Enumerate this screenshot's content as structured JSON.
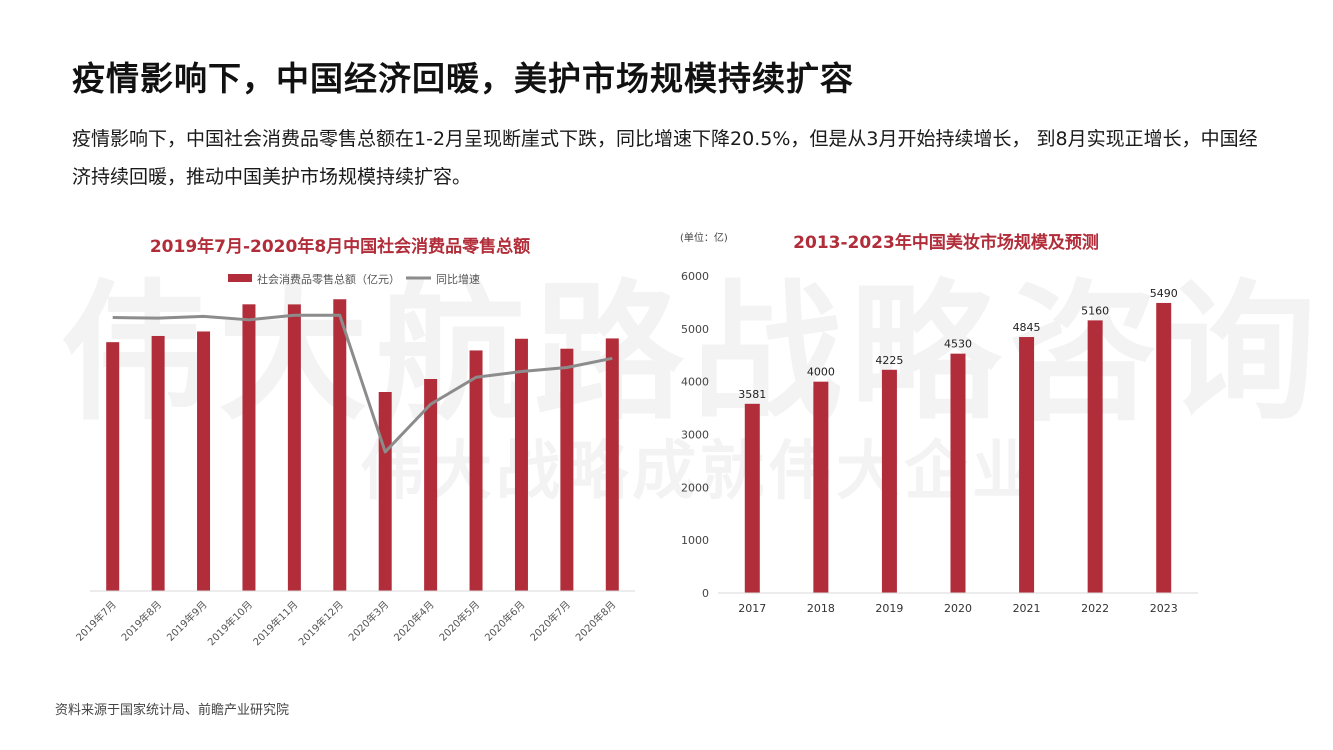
{
  "page": {
    "title": "疫情影响下，中国经济回暖，美护市场规模持续扩容",
    "description": "疫情影响下，中国社会消费品零售总额在1-2月呈现断崖式下跌，同比增速下降20.5%，但是从3月开始持续增长， 到8月实现正增长，中国经济持续回暖，推动中国美护市场规模持续扩容。",
    "source": "资料来源于国家统计局、前瞻产业研究院",
    "watermark_main": "伟大航路战略咨询",
    "watermark_sub": "伟大战略成就伟大企业"
  },
  "colors": {
    "bar": "#b22d3a",
    "line": "#8c8c8c",
    "title_red": "#b22d3a",
    "axis": "#d9d9d9"
  },
  "chart_data": [
    {
      "type": "bar",
      "title": "2019年7月-2020年8月中国社会消费品零售总额",
      "categories": [
        "2019年7月",
        "2019年8月",
        "2019年9月",
        "2019年10月",
        "2019年11月",
        "2019年12月",
        "2020年3月",
        "2020年4月",
        "2020年5月",
        "2020年6月",
        "2020年7月",
        "2020年8月"
      ],
      "series": [
        {
          "name": "社会消费品零售总额（亿元）",
          "kind": "bar",
          "values": [
            33073,
            33896,
            34495,
            38104,
            38094,
            38777,
            26450,
            28178,
            31973,
            33526,
            32203,
            33570
          ]
        },
        {
          "name": "同比增速",
          "kind": "line",
          "values": [
            7.6,
            7.5,
            7.8,
            7.2,
            8.0,
            8.0,
            -15.8,
            -7.5,
            -2.8,
            -1.8,
            -1.1,
            0.5
          ]
        }
      ],
      "ylim": [
        0,
        42000
      ],
      "y2lim": [
        -40,
        15
      ],
      "legend_position": "top-left"
    },
    {
      "type": "bar",
      "title": "2013-2023年中国美妆市场规模及预测",
      "unit_label": "(单位：亿)",
      "categories": [
        "2017",
        "2018",
        "2019",
        "2020",
        "2021",
        "2022",
        "2023"
      ],
      "values": [
        3581,
        4000,
        4225,
        4530,
        4845,
        5160,
        5490
      ],
      "value_labels": [
        "3581",
        "4000",
        "4225",
        "4530",
        "4845",
        "5160",
        "5490"
      ],
      "yticks": [
        "0",
        "1000",
        "2000",
        "3000",
        "4000",
        "5000",
        "6000"
      ],
      "ylim": [
        0,
        6000
      ]
    }
  ]
}
